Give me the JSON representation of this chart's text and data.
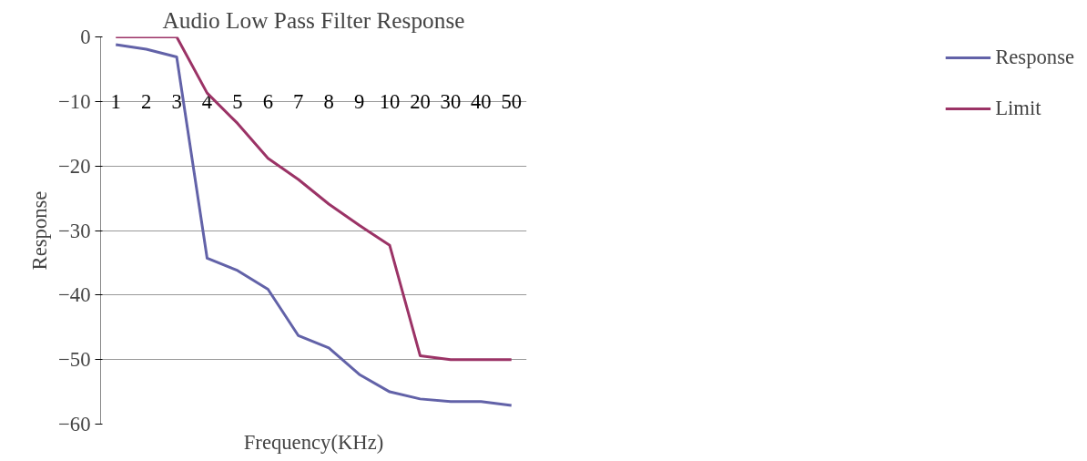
{
  "chart_data": {
    "type": "line",
    "title": "Audio Low Pass Filter Response",
    "xlabel": "Frequency(KHz)",
    "ylabel": "Response",
    "categories": [
      "1",
      "2",
      "3",
      "4",
      "5",
      "6",
      "7",
      "8",
      "9",
      "10",
      "20",
      "30",
      "40",
      "50"
    ],
    "series": [
      {
        "name": "Response",
        "color": "#6262a8",
        "values": [
          -1.2,
          -1.9,
          -3.1,
          -34.3,
          -36.2,
          -39.1,
          -46.3,
          -48.2,
          -52.3,
          -55.0,
          -56.1,
          -56.5,
          -56.5,
          -57.1
        ]
      },
      {
        "name": "Limit",
        "color": "#9b3366",
        "values": [
          0,
          0,
          0,
          -8.7,
          -13.4,
          -18.8,
          -22.1,
          -25.9,
          -29.2,
          -32.3,
          -49.4,
          -50,
          -50,
          -50
        ]
      }
    ],
    "ylim": [
      -60,
      0
    ],
    "yticks": [
      0,
      -10,
      -20,
      -30,
      -40,
      -50,
      -60
    ],
    "grid": "y",
    "legend": "right",
    "marker": "none",
    "line_style": "solid"
  }
}
